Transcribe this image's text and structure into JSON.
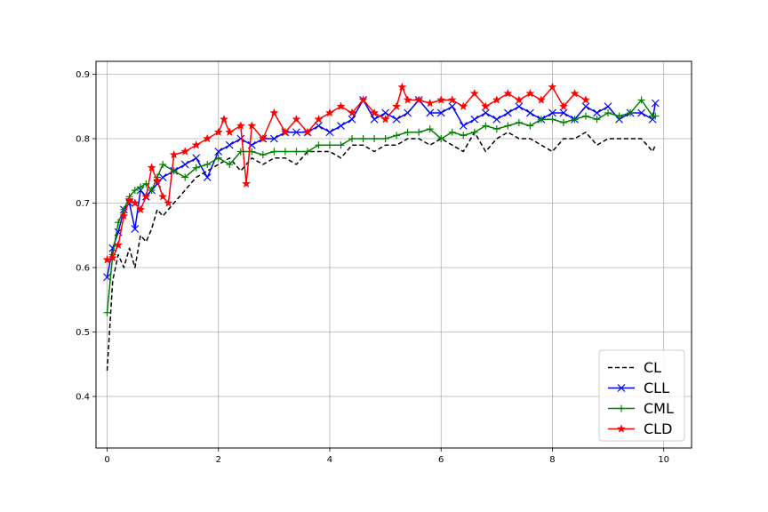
{
  "chart_data": {
    "type": "line",
    "title": "",
    "xlabel": "",
    "ylabel": "",
    "xlim": [
      -0.2,
      10.5
    ],
    "ylim": [
      0.32,
      0.92
    ],
    "xticks": [
      0,
      2,
      4,
      6,
      8,
      10
    ],
    "yticks": [
      0.4,
      0.5,
      0.6,
      0.7,
      0.8,
      0.9
    ],
    "grid": true,
    "legend_position": "lower-right",
    "series": [
      {
        "name": "CL",
        "color": "#000000",
        "line_style": "dashed",
        "marker": "none",
        "x": [
          0,
          0.05,
          0.1,
          0.2,
          0.3,
          0.4,
          0.5,
          0.6,
          0.7,
          0.8,
          0.9,
          1.0,
          1.2,
          1.4,
          1.6,
          1.8,
          2.0,
          2.2,
          2.4,
          2.6,
          2.8,
          3.0,
          3.2,
          3.4,
          3.6,
          3.8,
          4.0,
          4.2,
          4.4,
          4.6,
          4.8,
          5.0,
          5.2,
          5.4,
          5.6,
          5.8,
          6.0,
          6.2,
          6.4,
          6.6,
          6.8,
          7.0,
          7.2,
          7.4,
          7.6,
          7.8,
          8.0,
          8.2,
          8.4,
          8.6,
          8.8,
          9.0,
          9.2,
          9.4,
          9.6,
          9.8,
          9.85
        ],
        "y": [
          0.44,
          0.51,
          0.58,
          0.62,
          0.6,
          0.63,
          0.6,
          0.65,
          0.64,
          0.66,
          0.69,
          0.68,
          0.7,
          0.72,
          0.74,
          0.75,
          0.76,
          0.77,
          0.75,
          0.77,
          0.76,
          0.77,
          0.77,
          0.76,
          0.78,
          0.78,
          0.78,
          0.77,
          0.79,
          0.79,
          0.78,
          0.79,
          0.79,
          0.8,
          0.8,
          0.79,
          0.8,
          0.79,
          0.78,
          0.81,
          0.78,
          0.8,
          0.81,
          0.8,
          0.8,
          0.79,
          0.78,
          0.8,
          0.8,
          0.81,
          0.79,
          0.8,
          0.8,
          0.8,
          0.8,
          0.78,
          0.79
        ]
      },
      {
        "name": "CLL",
        "color": "#0000ff",
        "line_style": "solid",
        "marker": "x",
        "x": [
          0,
          0.1,
          0.2,
          0.3,
          0.4,
          0.5,
          0.6,
          0.7,
          0.8,
          0.9,
          1.0,
          1.2,
          1.4,
          1.6,
          1.8,
          2.0,
          2.2,
          2.4,
          2.6,
          2.8,
          3.0,
          3.2,
          3.4,
          3.6,
          3.8,
          4.0,
          4.2,
          4.4,
          4.6,
          4.8,
          5.0,
          5.2,
          5.4,
          5.6,
          5.8,
          6.0,
          6.2,
          6.4,
          6.6,
          6.8,
          7.0,
          7.2,
          7.4,
          7.6,
          7.8,
          8.0,
          8.2,
          8.4,
          8.6,
          8.8,
          9.0,
          9.2,
          9.4,
          9.6,
          9.8,
          9.85
        ],
        "y": [
          0.585,
          0.63,
          0.655,
          0.69,
          0.7,
          0.66,
          0.72,
          0.71,
          0.72,
          0.73,
          0.74,
          0.75,
          0.76,
          0.77,
          0.74,
          0.78,
          0.79,
          0.8,
          0.79,
          0.8,
          0.8,
          0.81,
          0.81,
          0.81,
          0.82,
          0.81,
          0.82,
          0.83,
          0.86,
          0.83,
          0.84,
          0.83,
          0.84,
          0.86,
          0.84,
          0.84,
          0.85,
          0.82,
          0.83,
          0.84,
          0.83,
          0.84,
          0.85,
          0.84,
          0.83,
          0.84,
          0.84,
          0.83,
          0.85,
          0.84,
          0.85,
          0.83,
          0.84,
          0.84,
          0.83,
          0.855
        ]
      },
      {
        "name": "CML",
        "color": "#008000",
        "line_style": "solid",
        "marker": "+",
        "x": [
          0,
          0.1,
          0.2,
          0.3,
          0.4,
          0.5,
          0.6,
          0.7,
          0.8,
          0.9,
          1.0,
          1.2,
          1.4,
          1.6,
          1.8,
          2.0,
          2.2,
          2.4,
          2.6,
          2.8,
          3.0,
          3.2,
          3.4,
          3.6,
          3.8,
          4.0,
          4.2,
          4.4,
          4.6,
          4.8,
          5.0,
          5.2,
          5.4,
          5.6,
          5.8,
          6.0,
          6.2,
          6.4,
          6.6,
          6.8,
          7.0,
          7.2,
          7.4,
          7.6,
          7.8,
          8.0,
          8.2,
          8.4,
          8.6,
          8.8,
          9.0,
          9.2,
          9.4,
          9.6,
          9.8,
          9.85
        ],
        "y": [
          0.53,
          0.62,
          0.67,
          0.69,
          0.71,
          0.72,
          0.725,
          0.73,
          0.72,
          0.74,
          0.76,
          0.75,
          0.74,
          0.755,
          0.76,
          0.77,
          0.76,
          0.78,
          0.78,
          0.775,
          0.78,
          0.78,
          0.78,
          0.78,
          0.79,
          0.79,
          0.79,
          0.8,
          0.8,
          0.8,
          0.8,
          0.805,
          0.81,
          0.81,
          0.815,
          0.8,
          0.81,
          0.805,
          0.81,
          0.82,
          0.815,
          0.82,
          0.825,
          0.82,
          0.83,
          0.83,
          0.825,
          0.83,
          0.835,
          0.83,
          0.84,
          0.835,
          0.84,
          0.86,
          0.835,
          0.835
        ]
      },
      {
        "name": "CLD",
        "color": "#ff0000",
        "line_style": "solid",
        "marker": "*",
        "x": [
          0,
          0.1,
          0.2,
          0.3,
          0.4,
          0.5,
          0.6,
          0.7,
          0.8,
          0.9,
          1.0,
          1.1,
          1.2,
          1.4,
          1.6,
          1.8,
          2.0,
          2.1,
          2.2,
          2.4,
          2.5,
          2.6,
          2.8,
          3.0,
          3.2,
          3.4,
          3.6,
          3.8,
          4.0,
          4.2,
          4.4,
          4.6,
          4.8,
          5.0,
          5.2,
          5.3,
          5.4,
          5.6,
          5.8,
          6.0,
          6.2,
          6.4,
          6.6,
          6.8,
          7.0,
          7.2,
          7.4,
          7.6,
          7.8,
          8.0,
          8.2,
          8.4,
          8.6
        ],
        "y": [
          0.612,
          0.615,
          0.635,
          0.68,
          0.705,
          0.7,
          0.69,
          0.71,
          0.755,
          0.735,
          0.71,
          0.7,
          0.775,
          0.78,
          0.79,
          0.8,
          0.81,
          0.83,
          0.81,
          0.82,
          0.73,
          0.82,
          0.8,
          0.84,
          0.81,
          0.83,
          0.81,
          0.83,
          0.84,
          0.85,
          0.84,
          0.86,
          0.84,
          0.83,
          0.85,
          0.88,
          0.86,
          0.86,
          0.855,
          0.86,
          0.86,
          0.85,
          0.87,
          0.85,
          0.86,
          0.87,
          0.86,
          0.87,
          0.86,
          0.88,
          0.85,
          0.87,
          0.86
        ]
      }
    ]
  }
}
